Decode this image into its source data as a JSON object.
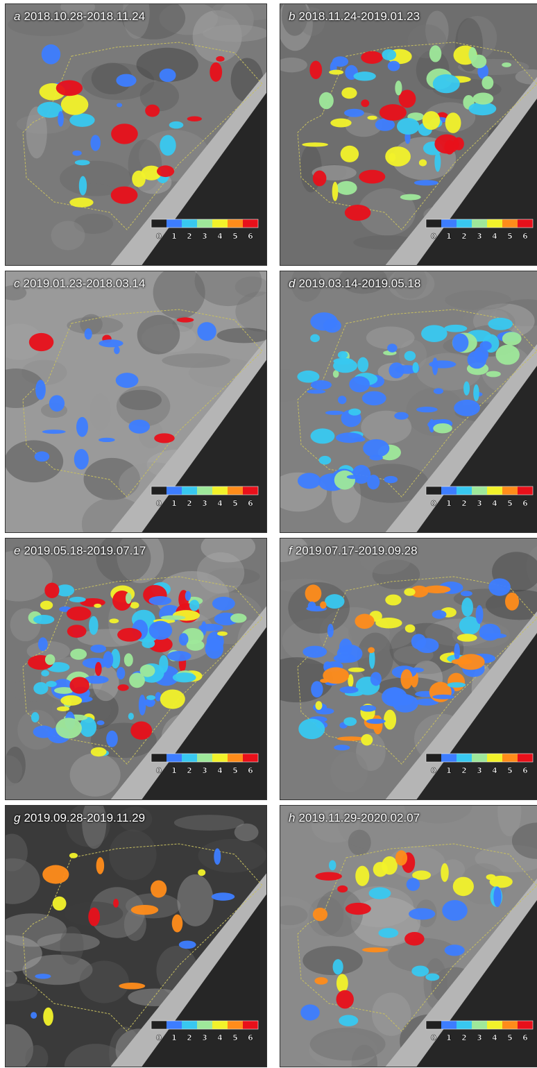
{
  "panels": [
    {
      "letter": "a",
      "dates": "2018.10.28-2018.11.24"
    },
    {
      "letter": "b",
      "dates": "2018.11.24-2019.01.23"
    },
    {
      "letter": "c",
      "dates": "2019.01.23-2018.03.14"
    },
    {
      "letter": "d",
      "dates": "2019.03.14-2019.05.18"
    },
    {
      "letter": "e",
      "dates": "2019.05.18-2019.07.17"
    },
    {
      "letter": "f",
      "dates": "2019.07.17-2019.09.28"
    },
    {
      "letter": "g",
      "dates": "2019.09.28-2019.11.29"
    },
    {
      "letter": "h",
      "dates": "2019.11.29-2020.02.07"
    }
  ],
  "legend": {
    "labels": [
      "0",
      "1",
      "2",
      "3",
      "4",
      "5",
      "6"
    ],
    "colors": [
      "#202020",
      "#3d7dff",
      "#38c8f0",
      "#9ee89a",
      "#f2f22a",
      "#ff8c1a",
      "#e8101a"
    ]
  }
}
